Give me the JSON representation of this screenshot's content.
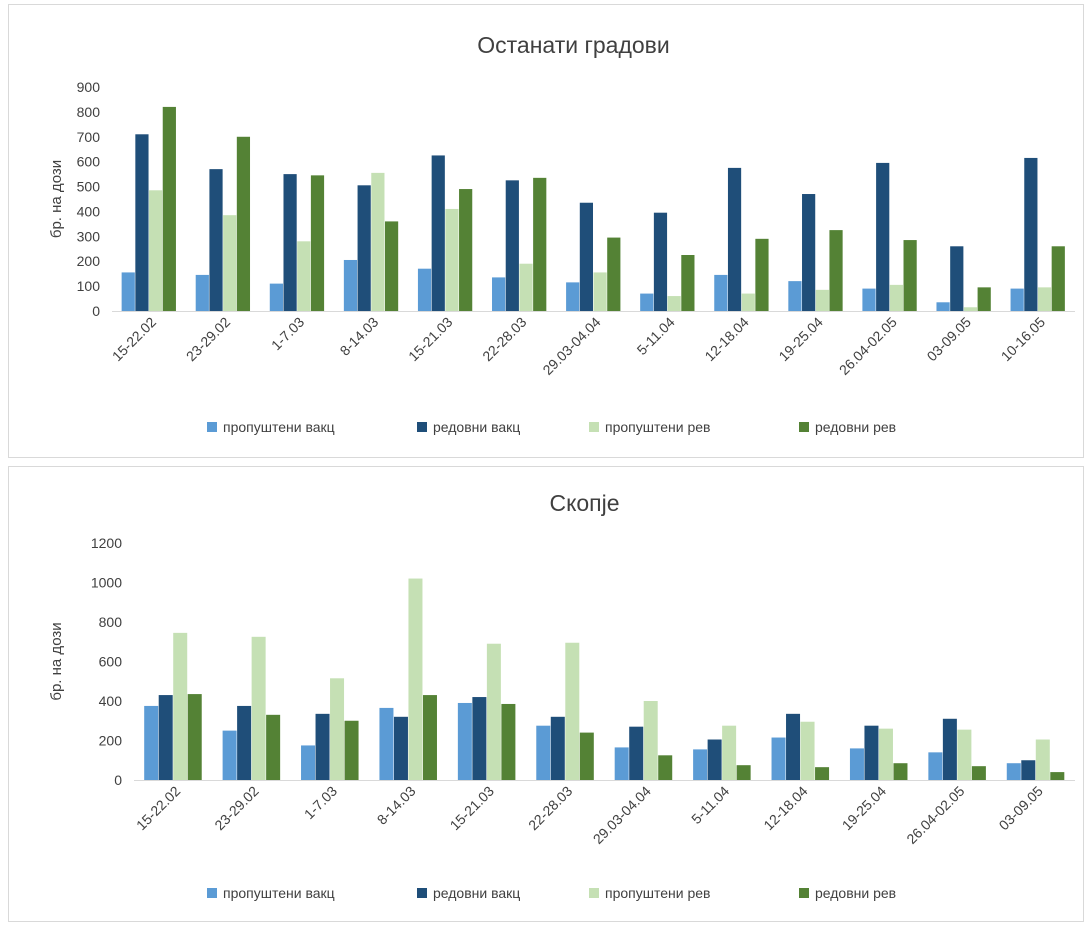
{
  "chart_data": [
    {
      "type": "bar",
      "title": "Останати градови",
      "ylabel": "бр. на дози",
      "xlabel": "",
      "ylim": [
        0,
        900
      ],
      "yticks": [
        0,
        100,
        200,
        300,
        400,
        500,
        600,
        700,
        800,
        900
      ],
      "grid": false,
      "legend_position": "bottom",
      "categories": [
        "15-22.02",
        "23-29.02",
        "1-7.03",
        "8-14.03",
        "15-21.03",
        "22-28.03",
        "29.03-04.04",
        "5-11.04",
        "12-18.04",
        "19-25.04",
        "26.04-02.05",
        "03-09.05",
        "10-16.05"
      ],
      "series": [
        {
          "name": "пропуштени вакц",
          "color": "#5b9bd5",
          "values": [
            155,
            145,
            110,
            205,
            170,
            135,
            115,
            70,
            145,
            120,
            90,
            35,
            90
          ]
        },
        {
          "name": "редовни вакц",
          "color": "#1f4e79",
          "values": [
            710,
            570,
            550,
            505,
            625,
            525,
            435,
            395,
            575,
            470,
            595,
            260,
            615
          ]
        },
        {
          "name": "пропуштени рев",
          "color": "#c5e0b4",
          "values": [
            485,
            385,
            280,
            555,
            410,
            190,
            155,
            60,
            70,
            85,
            105,
            15,
            95
          ]
        },
        {
          "name": "редовни рев",
          "color": "#548235",
          "values": [
            820,
            700,
            545,
            360,
            490,
            535,
            295,
            225,
            290,
            325,
            285,
            95,
            260
          ]
        }
      ]
    },
    {
      "type": "bar",
      "title": "Скопје",
      "ylabel": "бр. на дози",
      "xlabel": "",
      "ylim": [
        0,
        1200
      ],
      "yticks": [
        0,
        200,
        400,
        600,
        800,
        1000,
        1200
      ],
      "grid": false,
      "legend_position": "bottom",
      "categories": [
        "15-22.02",
        "23-29.02",
        "1-7.03",
        "8-14.03",
        "15-21.03",
        "22-28.03",
        "29.03-04.04",
        "5-11.04",
        "12-18.04",
        "19-25.04",
        "26.04-02.05",
        "03-09.05"
      ],
      "series": [
        {
          "name": "пропуштени вакц",
          "color": "#5b9bd5",
          "values": [
            375,
            250,
            175,
            365,
            390,
            275,
            165,
            155,
            215,
            160,
            140,
            85
          ]
        },
        {
          "name": "редовни вакц",
          "color": "#1f4e79",
          "values": [
            430,
            375,
            335,
            320,
            420,
            320,
            270,
            205,
            335,
            275,
            310,
            100
          ]
        },
        {
          "name": "пропуштени рев",
          "color": "#c5e0b4",
          "values": [
            745,
            725,
            515,
            1020,
            690,
            695,
            400,
            275,
            295,
            260,
            255,
            205
          ]
        },
        {
          "name": "редовни рев",
          "color": "#548235",
          "values": [
            435,
            330,
            300,
            430,
            385,
            240,
            125,
            75,
            65,
            85,
            70,
            40
          ]
        }
      ]
    }
  ]
}
